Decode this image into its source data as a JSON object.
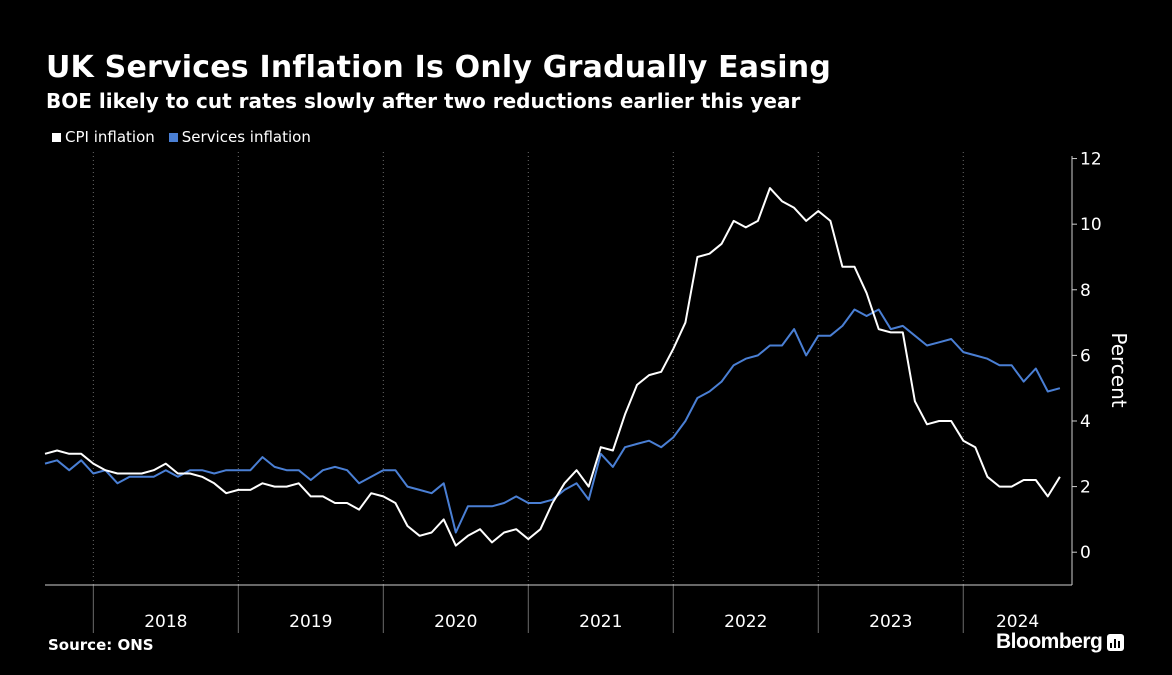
{
  "title": "UK Services Inflation Is Only Gradually Easing",
  "subtitle": "BOE likely to cut rates slowly after two reductions earlier this year",
  "source": "Source: ONS",
  "brand": "Bloomberg",
  "colors": {
    "background": "#000000",
    "cpi": "#ffffff",
    "services": "#4a7fd4",
    "grid": "#6b6b6b"
  },
  "chart_data": {
    "type": "line",
    "ylabel": "Percent",
    "ylim": [
      -1,
      12.2
    ],
    "yticks": [
      0,
      2,
      4,
      6,
      8,
      10,
      12
    ],
    "x_range": [
      "2017-09",
      "2024-10"
    ],
    "year_labels": [
      "2018",
      "2019",
      "2020",
      "2021",
      "2022",
      "2023",
      "2024"
    ],
    "x_start": "2017-09",
    "legend_position": "top-left",
    "grid": "vertical-dotted",
    "series": [
      {
        "name": "CPI inflation",
        "color": "#ffffff",
        "values": [
          3.0,
          3.1,
          3.0,
          3.0,
          2.7,
          2.5,
          2.4,
          2.4,
          2.4,
          2.5,
          2.7,
          2.4,
          2.4,
          2.3,
          2.1,
          1.8,
          1.9,
          1.9,
          2.1,
          2.0,
          2.0,
          2.1,
          1.7,
          1.7,
          1.5,
          1.5,
          1.3,
          1.8,
          1.7,
          1.5,
          0.8,
          0.5,
          0.6,
          1.0,
          0.2,
          0.5,
          0.7,
          0.3,
          0.6,
          0.7,
          0.4,
          0.7,
          1.5,
          2.1,
          2.5,
          2.0,
          3.2,
          3.1,
          4.2,
          5.1,
          5.4,
          5.5,
          6.2,
          7.0,
          9.0,
          9.1,
          9.4,
          10.1,
          9.9,
          10.1,
          11.1,
          10.7,
          10.5,
          10.1,
          10.4,
          10.1,
          8.7,
          8.7,
          7.9,
          6.8,
          6.7,
          6.7,
          4.6,
          3.9,
          4.0,
          4.0,
          3.4,
          3.2,
          2.3,
          2.0,
          2.0,
          2.2,
          2.2,
          1.7,
          2.3
        ]
      },
      {
        "name": "Services inflation",
        "color": "#4a7fd4",
        "values": [
          2.7,
          2.8,
          2.5,
          2.8,
          2.4,
          2.5,
          2.1,
          2.3,
          2.3,
          2.3,
          2.5,
          2.3,
          2.5,
          2.5,
          2.4,
          2.5,
          2.5,
          2.5,
          2.9,
          2.6,
          2.5,
          2.5,
          2.2,
          2.5,
          2.6,
          2.5,
          2.1,
          2.3,
          2.5,
          2.5,
          2.0,
          1.9,
          1.8,
          2.1,
          0.6,
          1.4,
          1.4,
          1.4,
          1.5,
          1.7,
          1.5,
          1.5,
          1.6,
          1.9,
          2.1,
          1.6,
          3.0,
          2.6,
          3.2,
          3.3,
          3.4,
          3.2,
          3.5,
          4.0,
          4.7,
          4.9,
          5.2,
          5.7,
          5.9,
          6.0,
          6.3,
          6.3,
          6.8,
          6.0,
          6.6,
          6.6,
          6.9,
          7.4,
          7.2,
          7.4,
          6.8,
          6.9,
          6.6,
          6.3,
          6.4,
          6.5,
          6.1,
          6.0,
          5.9,
          5.7,
          5.7,
          5.2,
          5.6,
          4.9,
          5.0
        ]
      }
    ]
  }
}
